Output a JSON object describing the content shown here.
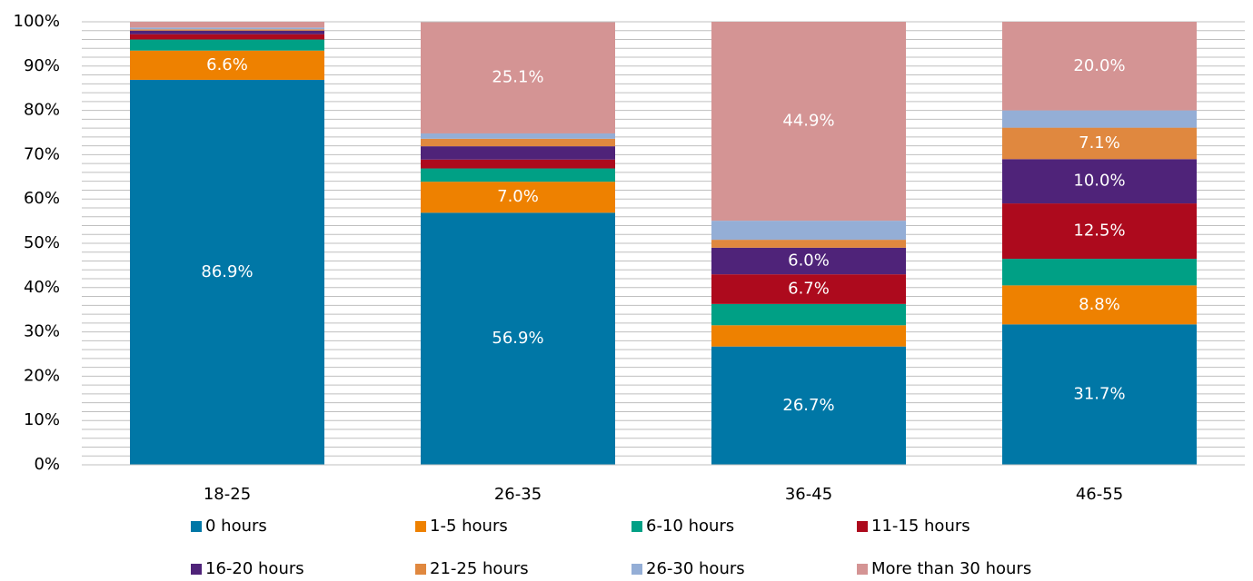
{
  "chart_data": {
    "type": "stacked_bar",
    "categories": [
      "18-25",
      "26-35",
      "36-45",
      "46-55"
    ],
    "series": [
      {
        "name": "0 hours",
        "color": "#0077a6",
        "values": [
          86.9,
          56.9,
          26.7,
          31.7
        ],
        "value_labels": [
          "86.9%",
          "56.9%",
          "26.7%",
          "31.7%"
        ]
      },
      {
        "name": "1-5 hours",
        "color": "#ee8100",
        "values": [
          6.6,
          7.0,
          4.8,
          8.8
        ],
        "value_labels": [
          "6.6%",
          "7.0%",
          null,
          "8.8%"
        ]
      },
      {
        "name": "6-10 hours",
        "color": "#00a085",
        "values": [
          2.5,
          3.0,
          4.8,
          6.0
        ],
        "value_labels": [
          null,
          null,
          null,
          null
        ]
      },
      {
        "name": "11-15 hours",
        "color": "#ad0a1d",
        "values": [
          1.2,
          2.0,
          6.7,
          12.5
        ],
        "value_labels": [
          null,
          null,
          "6.7%",
          "12.5%"
        ]
      },
      {
        "name": "16-20 hours",
        "color": "#4f2379",
        "values": [
          0.8,
          3.0,
          6.0,
          10.0
        ],
        "value_labels": [
          null,
          null,
          "6.0%",
          "10.0%"
        ]
      },
      {
        "name": "21-25 hours",
        "color": "#e0883f",
        "values": [
          0.3,
          1.7,
          1.8,
          7.1
        ],
        "value_labels": [
          null,
          null,
          null,
          "7.1%"
        ]
      },
      {
        "name": "26-30 hours",
        "color": "#94aed6",
        "values": [
          0.4,
          1.2,
          4.3,
          3.9
        ],
        "value_labels": [
          null,
          null,
          null,
          null
        ]
      },
      {
        "name": "More than 30 hours",
        "color": "#d49494",
        "values": [
          1.3,
          25.1,
          44.9,
          20.0
        ],
        "value_labels": [
          null,
          "25.1%",
          "44.9%",
          "20.0%"
        ]
      }
    ],
    "ylim": [
      0,
      100
    ],
    "yticks": [
      {
        "value": 0,
        "label": "0%"
      },
      {
        "value": 10,
        "label": "10%"
      },
      {
        "value": 20,
        "label": "20%"
      },
      {
        "value": 30,
        "label": "30%"
      },
      {
        "value": 40,
        "label": "40%"
      },
      {
        "value": 50,
        "label": "50%"
      },
      {
        "value": 60,
        "label": "60%"
      },
      {
        "value": 70,
        "label": "70%"
      },
      {
        "value": 80,
        "label": "80%"
      },
      {
        "value": 90,
        "label": "90%"
      },
      {
        "value": 100,
        "label": "100%"
      }
    ],
    "yticks_minor": [
      0,
      2,
      4,
      6,
      8,
      10,
      12,
      14,
      16,
      18,
      20,
      22,
      24,
      26,
      28,
      30,
      32,
      34,
      36,
      38,
      40,
      42,
      44,
      46,
      48,
      50,
      52,
      54,
      56,
      58,
      60,
      62,
      64,
      66,
      68,
      70,
      72,
      74,
      76,
      78,
      80,
      82,
      84,
      86,
      88,
      90,
      92,
      94,
      96,
      98,
      100
    ],
    "grid": true,
    "legend": "bottom"
  }
}
